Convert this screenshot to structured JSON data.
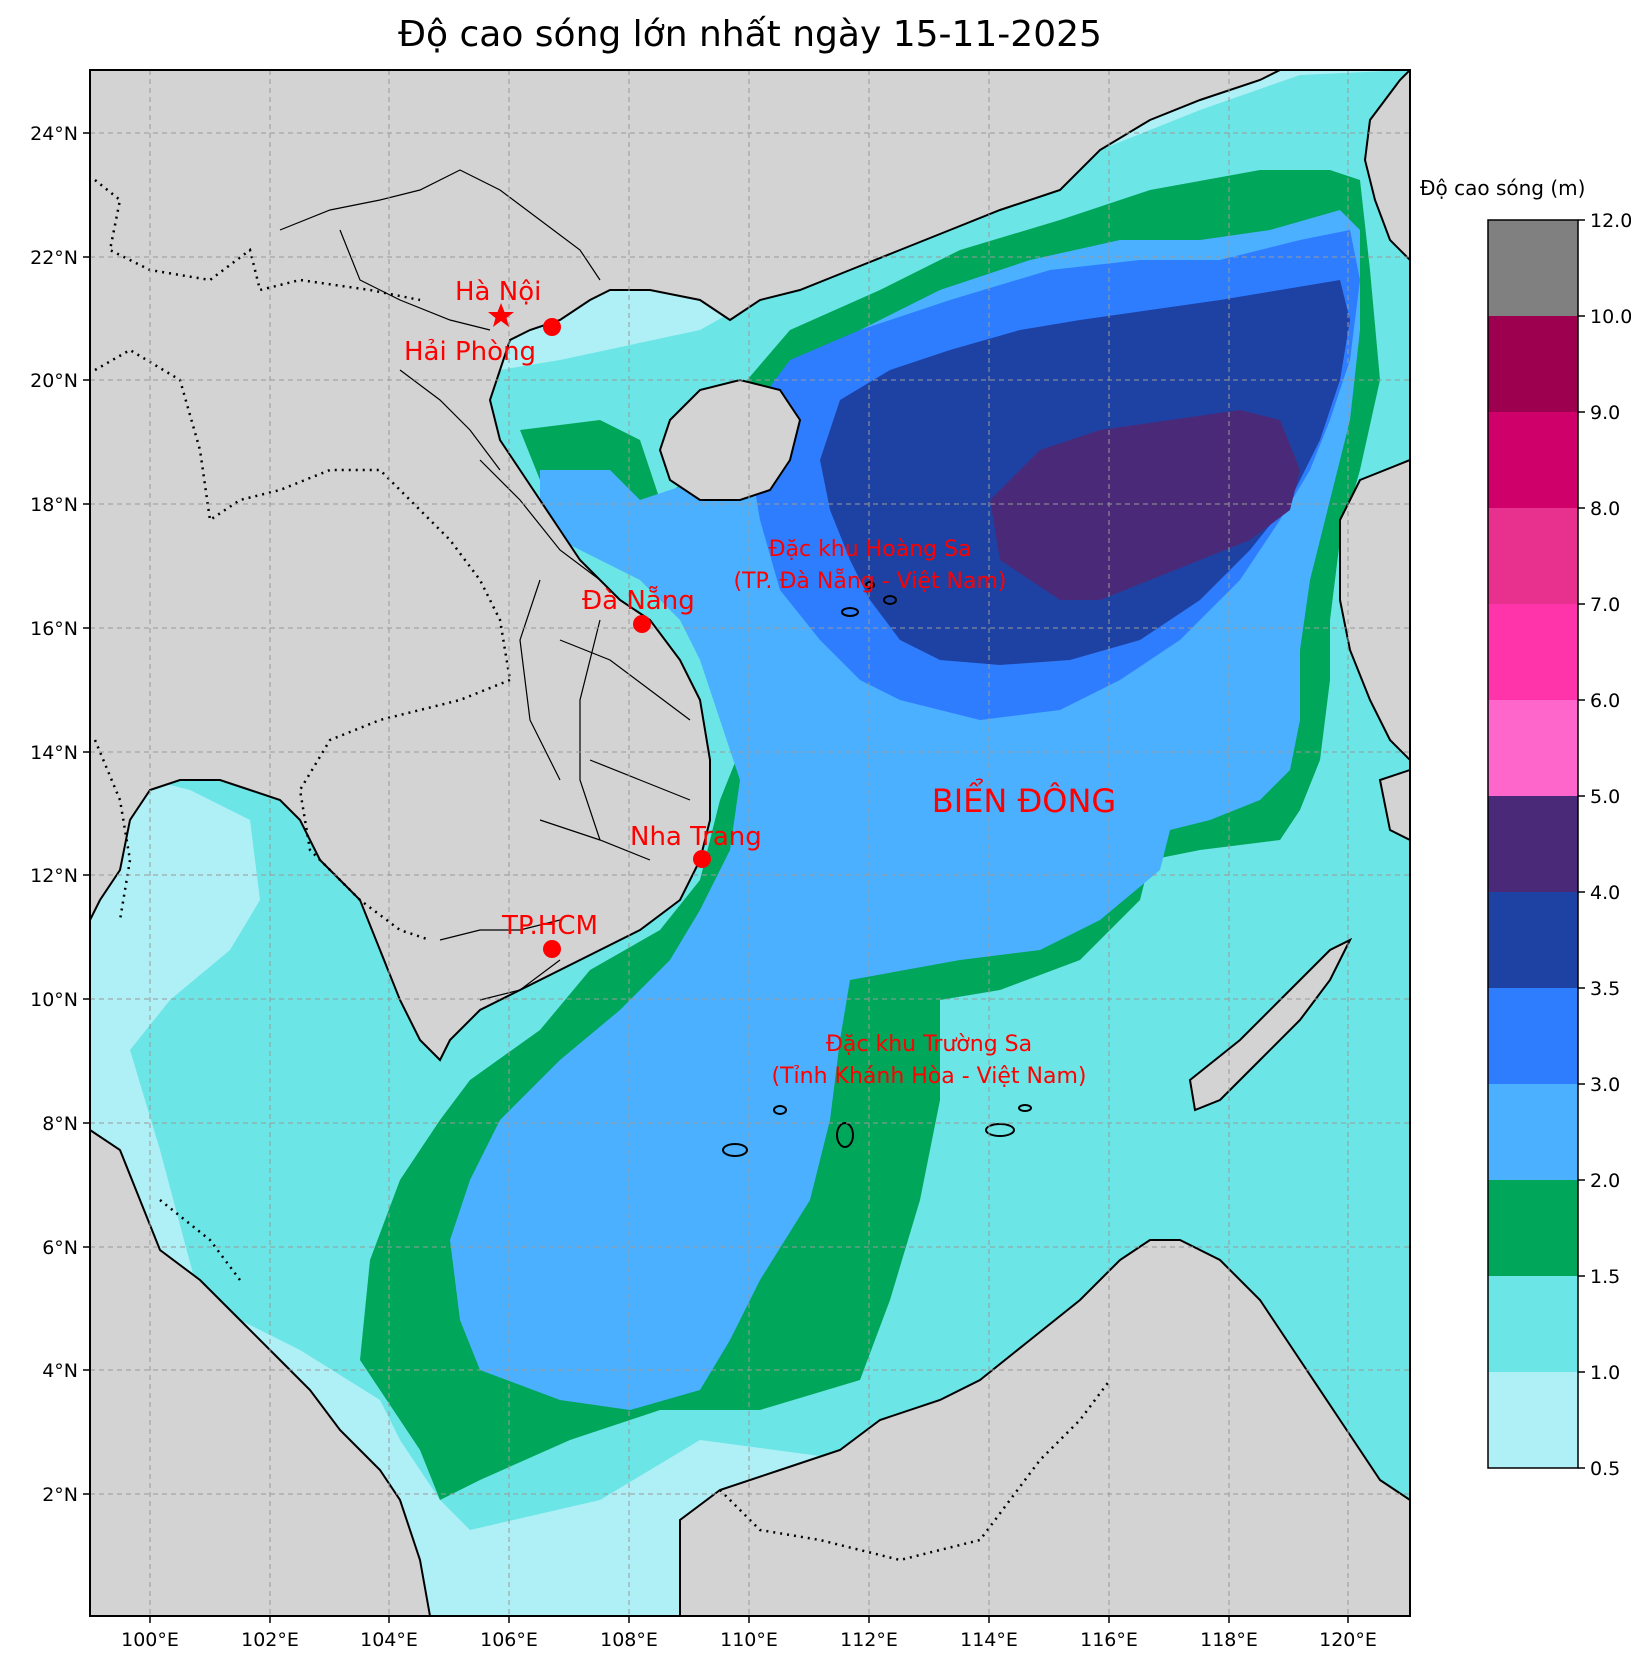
{
  "title": "Độ cao sóng lớn nhất ngày 15-11-2025",
  "colorbar": {
    "title": "Độ cao sóng (m)",
    "ticks": [
      "0.5",
      "1.0",
      "1.5",
      "2.0",
      "3.0",
      "3.5",
      "4.0",
      "5.0",
      "6.0",
      "7.0",
      "8.0",
      "9.0",
      "10.0",
      "12.0"
    ],
    "colors": [
      "#aff0f7",
      "#6be5e5",
      "#00a65a",
      "#4bb0ff",
      "#2e7dff",
      "#1e42a3",
      "#4a2a78",
      "#ff66cc",
      "#ff33aa",
      "#e8308f",
      "#d0006a",
      "#9c004f",
      "#808080"
    ]
  },
  "map_colors": {
    "land": "#d3d3d3",
    "sea_low": "#aff0f7",
    "sea_1_0": "#6be5e5",
    "sea_1_5": "#00a65a",
    "sea_2_0": "#4bb0ff",
    "sea_3_0": "#2e7dff",
    "sea_3_5": "#1e42a3",
    "sea_4_0": "#4a2a78"
  },
  "axes": {
    "x_ticks": [
      "100°E",
      "102°E",
      "104°E",
      "106°E",
      "108°E",
      "110°E",
      "112°E",
      "114°E",
      "116°E",
      "118°E",
      "120°E"
    ],
    "y_ticks": [
      "24°N",
      "22°N",
      "20°N",
      "18°N",
      "16°N",
      "14°N",
      "12°N",
      "10°N",
      "8°N",
      "6°N",
      "4°N",
      "2°N"
    ]
  },
  "labels": {
    "hanoi": "Hà Nội",
    "haiphong": "Hải Phòng",
    "danang": "Đà Nẵng",
    "nhatrang": "Nha Trang",
    "hcm": "TP.HCM",
    "hoangsa_1": "Đặc khu Hoàng Sa",
    "hoangsa_2": "(TP. Đà Nẵng - Việt Nam)",
    "truongsa_1": "Đặc khu Trường Sa",
    "truongsa_2": "(Tỉnh Khánh Hòa - Việt Nam)",
    "sea": "BIỂN ĐÔNG"
  }
}
